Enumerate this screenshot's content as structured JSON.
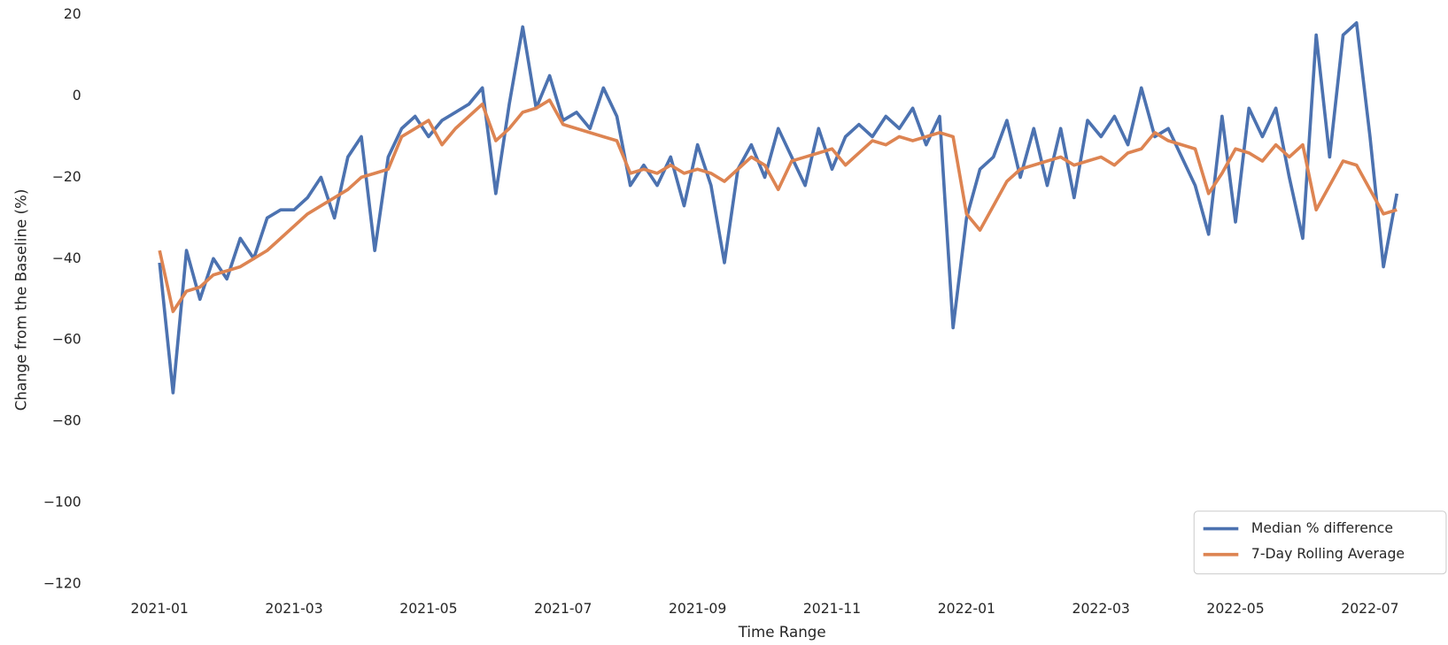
{
  "chart_data": {
    "type": "line",
    "xlabel": "Time Range",
    "ylabel": "Change from the Baseline (%)",
    "x": [
      0,
      0.2,
      0.4,
      0.6,
      0.8,
      1.0,
      1.2,
      1.4,
      1.6,
      1.8,
      2.0,
      2.2,
      2.4,
      2.6,
      2.8,
      3.0,
      3.2,
      3.4,
      3.6,
      3.8,
      4.0,
      4.2,
      4.4,
      4.6,
      4.8,
      5.0,
      5.2,
      5.4,
      5.6,
      5.8,
      6.0,
      6.2,
      6.4,
      6.6,
      6.8,
      7.0,
      7.2,
      7.4,
      7.6,
      7.8,
      8.0,
      8.2,
      8.4,
      8.6,
      8.8,
      9.0,
      9.2,
      9.4,
      9.6,
      9.8,
      10.0,
      10.2,
      10.4,
      10.6,
      10.8,
      11.0,
      11.2,
      11.4,
      11.6,
      11.8,
      12.0,
      12.2,
      12.4,
      12.6,
      12.8,
      13.0,
      13.2,
      13.4,
      13.6,
      13.8,
      14.0,
      14.2,
      14.4,
      14.6,
      14.8,
      15.0,
      15.2,
      15.4,
      15.6,
      15.8,
      16.0,
      16.2,
      16.4,
      16.6,
      16.8,
      17.0,
      17.2,
      17.4,
      17.6,
      17.8,
      18.0,
      18.2,
      18.4
    ],
    "series": [
      {
        "name": "Median % difference",
        "color": "#4c72b0",
        "values": [
          -41,
          -73,
          -38,
          -50,
          -40,
          -45,
          -35,
          -40,
          -30,
          -28,
          -28,
          -25,
          -20,
          -30,
          -15,
          -10,
          -38,
          -15,
          -8,
          -5,
          -10,
          -6,
          -4,
          -2,
          2,
          -24,
          -2,
          17,
          -3,
          5,
          -6,
          -4,
          -8,
          2,
          -5,
          -22,
          -17,
          -22,
          -15,
          -27,
          -12,
          -22,
          -41,
          -18,
          -12,
          -20,
          -8,
          -15,
          -22,
          -8,
          -18,
          -10,
          -7,
          -10,
          -5,
          -8,
          -3,
          -12,
          -5,
          -57,
          -30,
          -18,
          -15,
          -6,
          -20,
          -8,
          -22,
          -8,
          -25,
          -6,
          -10,
          -5,
          -12,
          2,
          -10,
          -8,
          -15,
          -22,
          -34,
          -5,
          -31,
          -3,
          -10,
          -3,
          -20,
          -35,
          15,
          -15,
          15,
          18,
          -10,
          -42,
          -24
        ]
      },
      {
        "name": "7-Day Rolling Average",
        "color": "#dd8452",
        "values": [
          -38,
          -53,
          -48,
          -47,
          -44,
          -43,
          -42,
          -40,
          -38,
          -35,
          -32,
          -29,
          -27,
          -25,
          -23,
          -20,
          -19,
          -18,
          -10,
          -8,
          -6,
          -12,
          -8,
          -5,
          -2,
          -11,
          -8,
          -4,
          -3,
          -1,
          -7,
          -8,
          -9,
          -10,
          -11,
          -19,
          -18,
          -19,
          -17,
          -19,
          -18,
          -19,
          -21,
          -18,
          -15,
          -17,
          -23,
          -16,
          -15,
          -14,
          -13,
          -17,
          -14,
          -11,
          -12,
          -10,
          -11,
          -10,
          -9,
          -10,
          -29,
          -33,
          -27,
          -21,
          -18,
          -17,
          -16,
          -15,
          -17,
          -16,
          -15,
          -17,
          -14,
          -13,
          -9,
          -11,
          -12,
          -13,
          -24,
          -19,
          -13,
          -14,
          -16,
          -12,
          -15,
          -12,
          -28,
          -22,
          -16,
          -17,
          -23,
          -29,
          -28
        ]
      }
    ],
    "xlim": [
      -1,
      19.16
    ],
    "ylim": [
      -123.9,
      23.6
    ],
    "xticks": [
      {
        "value": 0,
        "label": "2021-01"
      },
      {
        "value": 2,
        "label": "2021-03"
      },
      {
        "value": 4,
        "label": "2021-05"
      },
      {
        "value": 6,
        "label": "2021-07"
      },
      {
        "value": 8,
        "label": "2021-09"
      },
      {
        "value": 10,
        "label": "2021-11"
      },
      {
        "value": 12,
        "label": "2022-01"
      },
      {
        "value": 14,
        "label": "2022-03"
      },
      {
        "value": 16,
        "label": "2022-05"
      },
      {
        "value": 18,
        "label": "2022-07"
      }
    ],
    "yticks": [
      20,
      {
        "value": 0,
        "label": "0"
      },
      {
        "value": -20,
        "label": "−20"
      },
      {
        "value": -40,
        "label": "−40"
      },
      {
        "value": -60,
        "label": "−60"
      },
      {
        "value": -80,
        "label": "−80"
      },
      {
        "value": -100,
        "label": "−100"
      },
      {
        "value": -120,
        "label": "−120"
      }
    ],
    "grid": false,
    "legend": "lower right"
  }
}
